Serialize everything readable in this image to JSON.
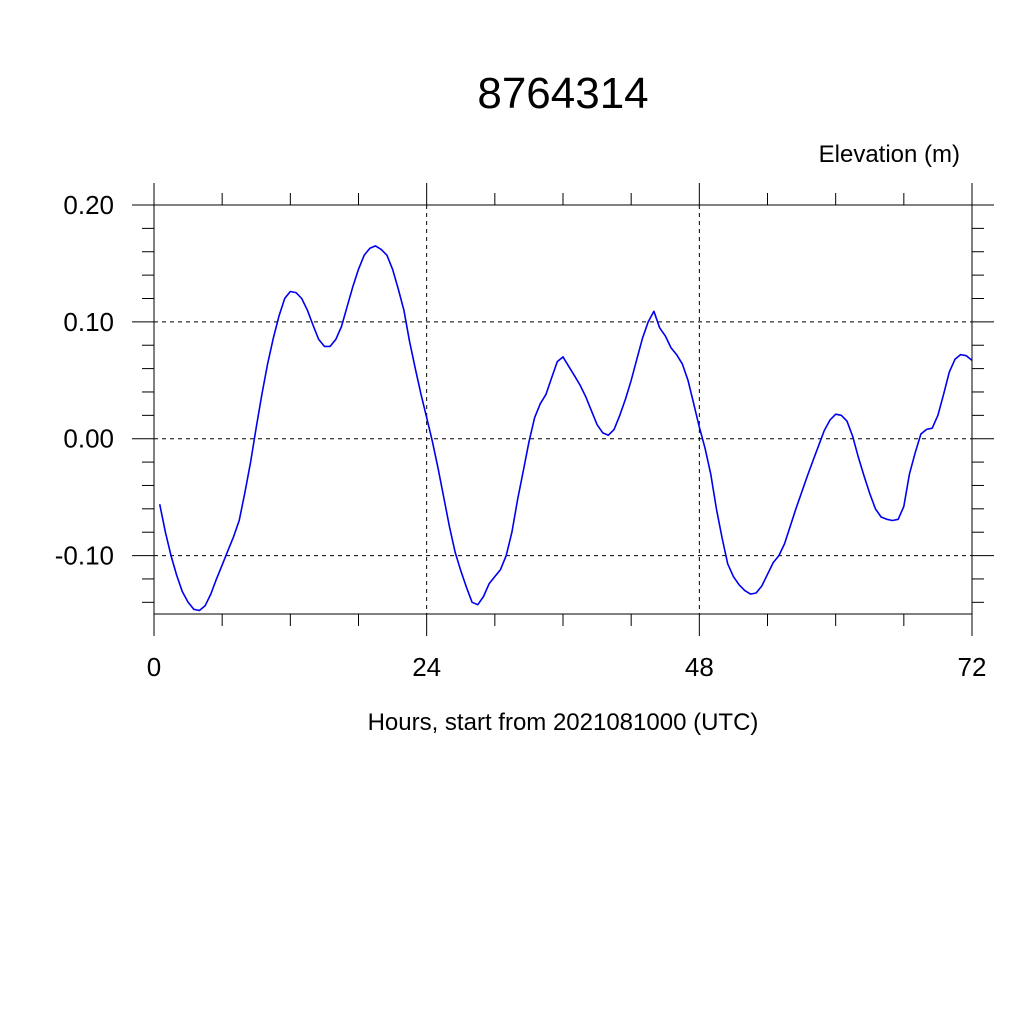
{
  "chart_data": {
    "type": "line",
    "title": "8764314",
    "ylabel": "Elevation (m)",
    "xlabel": "Hours, start from 2021081000 (UTC)",
    "xlim": [
      0,
      72
    ],
    "ylim": [
      -0.15,
      0.2
    ],
    "xticks": [
      0,
      24,
      48,
      72
    ],
    "xtick_labels": [
      "0",
      "24",
      "48",
      "72"
    ],
    "yticks": [
      -0.1,
      0.0,
      0.1,
      0.2
    ],
    "ytick_labels": [
      "-0.10",
      "0.00",
      "0.10",
      "0.20"
    ],
    "grid": true,
    "series": [
      {
        "color": "#0000ee",
        "x": [
          0.5,
          1,
          1.5,
          2,
          2.5,
          3,
          3.5,
          4,
          4.5,
          5,
          5.5,
          6,
          6.5,
          7,
          7.5,
          8,
          8.5,
          9,
          9.5,
          10,
          10.5,
          11,
          11.5,
          12,
          12.5,
          13,
          13.5,
          14,
          14.5,
          15,
          15.5,
          16,
          16.5,
          17,
          17.5,
          18,
          18.5,
          19,
          19.5,
          20,
          20.5,
          21,
          21.5,
          22,
          22.5,
          23,
          23.5,
          24,
          24.5,
          25,
          25.5,
          26,
          26.5,
          27,
          27.5,
          28,
          28.5,
          29,
          29.5,
          30,
          30.5,
          31,
          31.5,
          32,
          32.5,
          33,
          33.5,
          34,
          34.5,
          35,
          35.5,
          36,
          36.5,
          37,
          37.5,
          38,
          38.5,
          39,
          39.5,
          40,
          40.5,
          41,
          41.5,
          42,
          42.5,
          43,
          43.5,
          44,
          44.5,
          45,
          45.5,
          46,
          46.5,
          47,
          47.5,
          48,
          48.5,
          49,
          49.5,
          50,
          50.5,
          51,
          51.5,
          52,
          52.5,
          53,
          53.5,
          54,
          54.5,
          55,
          55.5,
          56,
          56.5,
          57,
          57.5,
          58,
          58.5,
          59,
          59.5,
          60,
          60.5,
          61,
          61.5,
          62,
          62.5,
          63,
          63.5,
          64,
          64.5,
          65,
          65.5,
          66,
          66.5,
          67,
          67.5,
          68,
          68.5,
          69,
          69.5,
          70,
          70.5,
          71,
          71.5,
          72
        ],
        "y": [
          -0.056,
          -0.08,
          -0.1,
          -0.117,
          -0.131,
          -0.14,
          -0.146,
          -0.147,
          -0.143,
          -0.133,
          -0.12,
          -0.108,
          -0.096,
          -0.084,
          -0.07,
          -0.046,
          -0.02,
          0.01,
          0.038,
          0.064,
          0.086,
          0.105,
          0.12,
          0.126,
          0.125,
          0.12,
          0.11,
          0.097,
          0.085,
          0.079,
          0.079,
          0.085,
          0.096,
          0.113,
          0.13,
          0.145,
          0.157,
          0.163,
          0.165,
          0.162,
          0.157,
          0.145,
          0.128,
          0.11,
          0.083,
          0.06,
          0.038,
          0.018,
          -0.002,
          -0.025,
          -0.05,
          -0.075,
          -0.097,
          -0.113,
          -0.127,
          -0.14,
          -0.142,
          -0.135,
          -0.124,
          -0.118,
          -0.112,
          -0.1,
          -0.08,
          -0.052,
          -0.028,
          -0.003,
          0.018,
          0.03,
          0.038,
          0.052,
          0.066,
          0.07,
          0.062,
          0.054,
          0.046,
          0.036,
          0.024,
          0.012,
          0.005,
          0.003,
          0.008,
          0.02,
          0.034,
          0.05,
          0.068,
          0.086,
          0.1,
          0.109,
          0.095,
          0.088,
          0.078,
          0.072,
          0.064,
          0.05,
          0.03,
          0.01,
          -0.008,
          -0.03,
          -0.06,
          -0.085,
          -0.107,
          -0.118,
          -0.125,
          -0.13,
          -0.133,
          -0.132,
          -0.126,
          -0.116,
          -0.106,
          -0.1,
          -0.09,
          -0.075,
          -0.06,
          -0.046,
          -0.032,
          -0.019,
          -0.006,
          0.007,
          0.016,
          0.021,
          0.02,
          0.015,
          0.002,
          -0.016,
          -0.032,
          -0.047,
          -0.06,
          -0.067,
          -0.069,
          -0.07,
          -0.069,
          -0.058,
          -0.03,
          -0.012,
          0.004,
          0.008,
          0.009,
          0.02,
          0.038,
          0.057,
          0.068,
          0.072,
          0.071,
          0.067
        ]
      }
    ]
  }
}
